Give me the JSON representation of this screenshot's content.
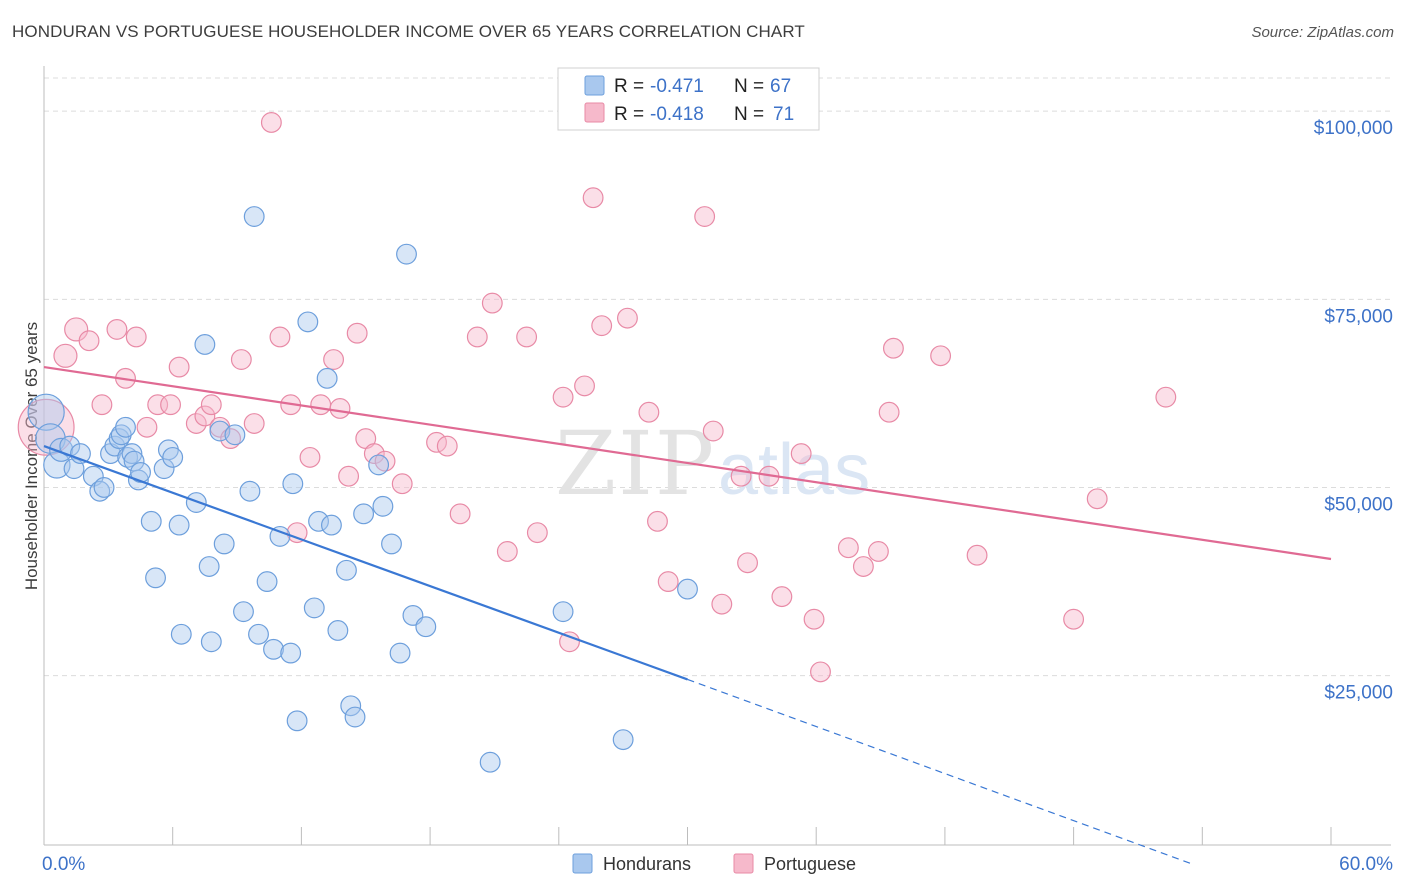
{
  "title": "HONDURAN VS PORTUGUESE HOUSEHOLDER INCOME OVER 65 YEARS CORRELATION CHART",
  "source": "Source: ZipAtlas.com",
  "watermark": {
    "zip": "ZIP",
    "atlas": "atlas"
  },
  "colors": {
    "blue_fill": "#a9c8ee",
    "blue_stroke": "#6d9fdc",
    "blue_line": "#3a78d4",
    "pink_fill": "#f6b9cb",
    "pink_stroke": "#e88aa6",
    "pink_line": "#e06a93",
    "axis_label": "#3d72c8",
    "grid": "#dcdcdc"
  },
  "legend": {
    "rows": [
      {
        "r_label": "R = ",
        "r_value": "-0.471",
        "n_label": "N = ",
        "n_value": "67"
      },
      {
        "r_label": "R = ",
        "r_value": "-0.418",
        "n_label": "N = ",
        "n_value": "71"
      }
    ]
  },
  "bottom_legend": [
    "Hondurans",
    "Portuguese"
  ],
  "chart_data": {
    "type": "scatter",
    "title": "HONDURAN VS PORTUGUESE HOUSEHOLDER INCOME OVER 65 YEARS CORRELATION CHART",
    "xlabel": "",
    "ylabel": "Householder Income Over 65 years",
    "xlim": [
      0,
      60
    ],
    "ylim": [
      2500,
      106000
    ],
    "x_tick_labels": [
      {
        "value": 0,
        "label": "0.0%"
      },
      {
        "value": 60,
        "label": "60.0%"
      }
    ],
    "y_ticks": [
      {
        "value": 25000,
        "label": "$25,000"
      },
      {
        "value": 50000,
        "label": "$50,000"
      },
      {
        "value": 75000,
        "label": "$75,000"
      },
      {
        "value": 100000,
        "label": "$100,000"
      }
    ],
    "grid": true,
    "legend_position": "top-center",
    "series": [
      {
        "name": "Hondurans",
        "r": -0.471,
        "n": 67,
        "trend": {
          "x0": 0,
          "y0": 55500,
          "x1": 30,
          "y1": 24500,
          "dash_to_x": 53.5,
          "dash_to_y": 0
        },
        "points": [
          [
            0.1,
            60000,
            2.2
          ],
          [
            0.3,
            56500,
            1.8
          ],
          [
            0.6,
            53000,
            1.6
          ],
          [
            0.8,
            55000,
            1.4
          ],
          [
            1.2,
            55500,
            1.2
          ],
          [
            1.4,
            52500,
            1.2
          ],
          [
            1.7,
            54500,
            1.2
          ],
          [
            2.3,
            51500,
            1.2
          ],
          [
            2.6,
            49500,
            1.2
          ],
          [
            2.8,
            50000,
            1.2
          ],
          [
            3.1,
            54500,
            1.2
          ],
          [
            3.3,
            55500,
            1.2
          ],
          [
            3.5,
            56500,
            1.2
          ],
          [
            3.6,
            57000,
            1.2
          ],
          [
            3.8,
            58000,
            1.2
          ],
          [
            3.9,
            54000,
            1.2
          ],
          [
            4.1,
            54500,
            1.2
          ],
          [
            4.2,
            53500,
            1.2
          ],
          [
            4.4,
            51000,
            1.2
          ],
          [
            4.5,
            52000,
            1.2
          ],
          [
            5.0,
            45500,
            1.2
          ],
          [
            5.2,
            38000,
            1.2
          ],
          [
            5.6,
            52500,
            1.2
          ],
          [
            5.8,
            55000,
            1.2
          ],
          [
            6.0,
            54000,
            1.2
          ],
          [
            6.3,
            45000,
            1.2
          ],
          [
            6.4,
            30500,
            1.2
          ],
          [
            7.1,
            48000,
            1.2
          ],
          [
            7.5,
            69000,
            1.2
          ],
          [
            7.7,
            39500,
            1.2
          ],
          [
            7.8,
            29500,
            1.2
          ],
          [
            8.2,
            57500,
            1.2
          ],
          [
            8.4,
            42500,
            1.2
          ],
          [
            8.9,
            57000,
            1.2
          ],
          [
            9.3,
            33500,
            1.2
          ],
          [
            9.6,
            49500,
            1.2
          ],
          [
            9.8,
            86000,
            1.2
          ],
          [
            10.0,
            30500,
            1.2
          ],
          [
            10.4,
            37500,
            1.2
          ],
          [
            10.7,
            28500,
            1.2
          ],
          [
            11.0,
            43500,
            1.2
          ],
          [
            11.5,
            28000,
            1.2
          ],
          [
            11.6,
            50500,
            1.2
          ],
          [
            11.8,
            19000,
            1.2
          ],
          [
            12.3,
            72000,
            1.2
          ],
          [
            12.6,
            34000,
            1.2
          ],
          [
            12.8,
            45500,
            1.2
          ],
          [
            13.2,
            64500,
            1.2
          ],
          [
            13.4,
            45000,
            1.2
          ],
          [
            13.7,
            31000,
            1.2
          ],
          [
            14.1,
            39000,
            1.2
          ],
          [
            14.3,
            21000,
            1.2
          ],
          [
            14.5,
            19500,
            1.2
          ],
          [
            14.9,
            46500,
            1.2
          ],
          [
            15.6,
            53000,
            1.2
          ],
          [
            15.8,
            47500,
            1.2
          ],
          [
            16.2,
            42500,
            1.2
          ],
          [
            16.6,
            28000,
            1.2
          ],
          [
            16.9,
            81000,
            1.2
          ],
          [
            17.2,
            33000,
            1.2
          ],
          [
            17.8,
            31500,
            1.2
          ],
          [
            20.8,
            13500,
            1.2
          ],
          [
            24.2,
            33500,
            1.2
          ],
          [
            27.0,
            16500,
            1.2
          ],
          [
            30.0,
            36500,
            1.2
          ]
        ]
      },
      {
        "name": "Portuguese",
        "r": -0.418,
        "n": 71,
        "trend": {
          "x0": 0,
          "y0": 66000,
          "x1": 60,
          "y1": 40500
        },
        "points": [
          [
            0.1,
            58000,
            3.4
          ],
          [
            1.0,
            67500,
            1.4
          ],
          [
            1.5,
            71000,
            1.4
          ],
          [
            2.1,
            69500,
            1.2
          ],
          [
            2.7,
            61000,
            1.2
          ],
          [
            3.4,
            71000,
            1.2
          ],
          [
            3.8,
            64500,
            1.2
          ],
          [
            4.3,
            70000,
            1.2
          ],
          [
            4.8,
            58000,
            1.2
          ],
          [
            5.3,
            61000,
            1.2
          ],
          [
            5.9,
            61000,
            1.2
          ],
          [
            6.3,
            66000,
            1.2
          ],
          [
            7.1,
            58500,
            1.2
          ],
          [
            7.5,
            59500,
            1.2
          ],
          [
            7.8,
            61000,
            1.2
          ],
          [
            8.2,
            58000,
            1.2
          ],
          [
            8.7,
            56500,
            1.2
          ],
          [
            9.2,
            67000,
            1.2
          ],
          [
            9.8,
            58500,
            1.2
          ],
          [
            10.6,
            98500,
            1.2
          ],
          [
            11.0,
            70000,
            1.2
          ],
          [
            11.5,
            61000,
            1.2
          ],
          [
            11.8,
            44000,
            1.2
          ],
          [
            12.4,
            54000,
            1.2
          ],
          [
            12.9,
            61000,
            1.2
          ],
          [
            13.5,
            67000,
            1.2
          ],
          [
            13.8,
            60500,
            1.2
          ],
          [
            14.2,
            51500,
            1.2
          ],
          [
            14.6,
            70500,
            1.2
          ],
          [
            15.0,
            56500,
            1.2
          ],
          [
            15.4,
            54500,
            1.2
          ],
          [
            15.9,
            53500,
            1.2
          ],
          [
            16.7,
            50500,
            1.2
          ],
          [
            18.3,
            56000,
            1.2
          ],
          [
            18.8,
            55500,
            1.2
          ],
          [
            19.4,
            46500,
            1.2
          ],
          [
            20.2,
            70000,
            1.2
          ],
          [
            20.9,
            74500,
            1.2
          ],
          [
            21.6,
            41500,
            1.2
          ],
          [
            22.5,
            70000,
            1.2
          ],
          [
            23.0,
            44000,
            1.2
          ],
          [
            24.2,
            62000,
            1.2
          ],
          [
            24.5,
            29500,
            1.2
          ],
          [
            25.2,
            63500,
            1.2
          ],
          [
            25.6,
            88500,
            1.2
          ],
          [
            26.0,
            71500,
            1.2
          ],
          [
            27.2,
            72500,
            1.2
          ],
          [
            28.2,
            60000,
            1.2
          ],
          [
            28.6,
            45500,
            1.2
          ],
          [
            29.1,
            37500,
            1.2
          ],
          [
            30.8,
            86000,
            1.2
          ],
          [
            31.2,
            57500,
            1.2
          ],
          [
            31.6,
            34500,
            1.2
          ],
          [
            32.5,
            51500,
            1.2
          ],
          [
            32.8,
            40000,
            1.2
          ],
          [
            33.8,
            51500,
            1.2
          ],
          [
            34.4,
            35500,
            1.2
          ],
          [
            35.3,
            54500,
            1.2
          ],
          [
            35.9,
            32500,
            1.2
          ],
          [
            36.2,
            25500,
            1.2
          ],
          [
            37.5,
            42000,
            1.2
          ],
          [
            38.2,
            39500,
            1.2
          ],
          [
            38.9,
            41500,
            1.2
          ],
          [
            39.4,
            60000,
            1.2
          ],
          [
            39.6,
            68500,
            1.2
          ],
          [
            41.8,
            67500,
            1.2
          ],
          [
            43.5,
            41000,
            1.2
          ],
          [
            48.0,
            32500,
            1.2
          ],
          [
            49.1,
            48500,
            1.2
          ],
          [
            52.3,
            62000,
            1.2
          ]
        ]
      }
    ]
  }
}
